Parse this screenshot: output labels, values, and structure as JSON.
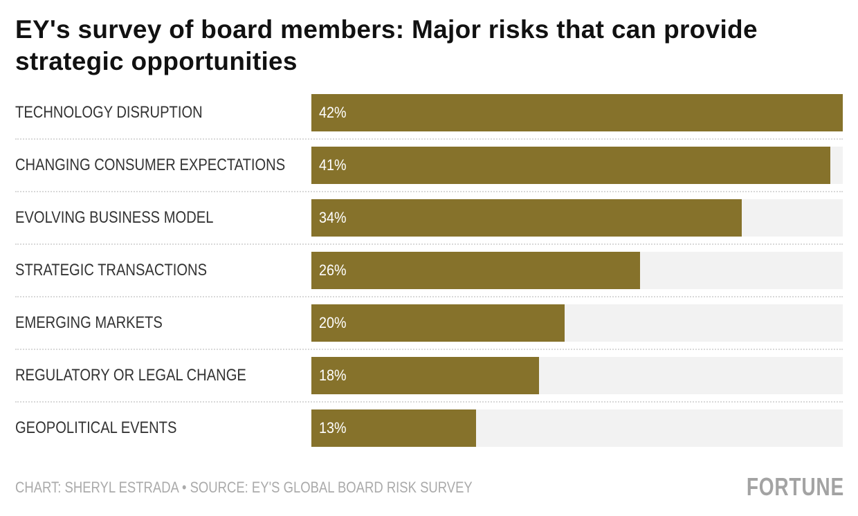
{
  "chart_data": {
    "type": "bar",
    "orientation": "horizontal",
    "title": "EY's survey of board members: Major risks that can provide strategic opportunities",
    "categories": [
      "TECHNOLOGY DISRUPTION",
      "CHANGING CONSUMER EXPECTATIONS",
      "EVOLVING BUSINESS MODEL",
      "STRATEGIC TRANSACTIONS",
      "EMERGING MARKETS",
      "REGULATORY OR LEGAL CHANGE",
      "GEOPOLITICAL EVENTS"
    ],
    "values": [
      42,
      41,
      34,
      26,
      20,
      18,
      13
    ],
    "data_labels": [
      "42%",
      "41%",
      "34%",
      "26%",
      "20%",
      "18%",
      "13%"
    ],
    "xlim": [
      0,
      42
    ],
    "unit": "%",
    "grid": false,
    "bar_color": "#86722b",
    "track_color": "#f2f2f2"
  },
  "footer": {
    "credit": "CHART: SHERYL ESTRADA • SOURCE: EY'S GLOBAL BOARD RISK SURVEY",
    "logo": "FORTUNE"
  }
}
